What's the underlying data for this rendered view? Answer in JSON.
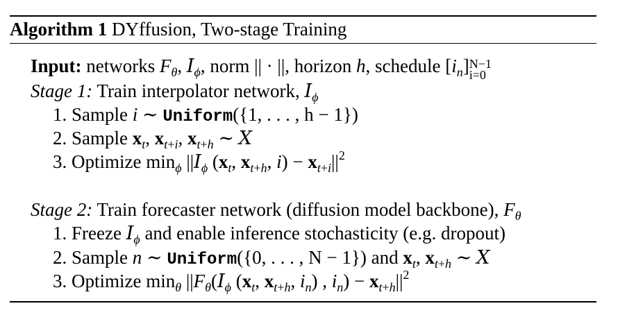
{
  "title": {
    "label": "Algorithm 1",
    "text": "DYffusion, Two-stage Training"
  },
  "input": {
    "label": "Input:",
    "networks_text": "networks",
    "norm_text": "norm",
    "horizon_text": "horizon",
    "schedule_text": "schedule",
    "schedule_upper": "N−1",
    "schedule_lower": "i=0"
  },
  "stage1": {
    "label": "Stage 1:",
    "text": "Train interpolator network,",
    "steps": [
      {
        "num": "1.",
        "text": "Sample"
      },
      {
        "num": "2.",
        "text": "Sample"
      },
      {
        "num": "3.",
        "text": "Optimize"
      }
    ],
    "uniform": "Uniform",
    "set1": "({1, . . . , h − 1})"
  },
  "stage2": {
    "label": "Stage 2:",
    "text": "Train forecaster network (diffusion model backbone),",
    "steps": [
      {
        "num": "1.",
        "text": "Freeze",
        "tail": "and enable inference stochasticity (e.g. dropout)"
      },
      {
        "num": "2.",
        "text": "Sample",
        "and_text": "and"
      },
      {
        "num": "3.",
        "text": "Optimize"
      }
    ],
    "uniform": "Uniform",
    "set2": "({0, . . . , N − 1})"
  }
}
